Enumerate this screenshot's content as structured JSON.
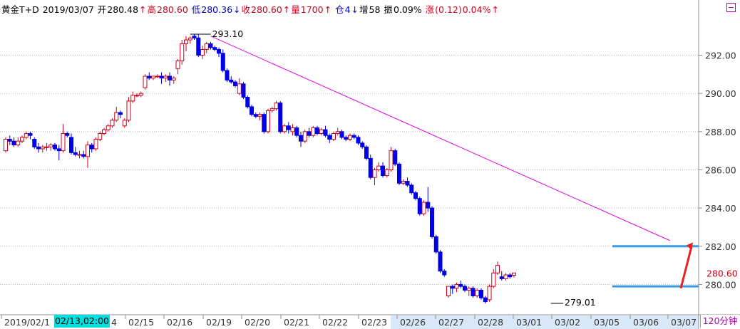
{
  "header": {
    "instrument": "黄金T+D",
    "date": "2019/03/07",
    "open_label": "开",
    "open": "280.48",
    "open_arrow": "↑",
    "high_label": "高",
    "high": "280.60",
    "high_arrow": "↑",
    "low_label": "低",
    "low": "280.36",
    "low_arrow": "↓",
    "close_label": "收",
    "close": "280.60",
    "close_arrow": "↑",
    "volume_label": "量",
    "volume": "1700",
    "volume_arrow": "↑",
    "oi_label": "仓",
    "oi": "4",
    "oi_arrow": "↓",
    "oi_change_label": "增",
    "oi_change": "58",
    "amp_label": "振",
    "amp": "0.09%",
    "chg_label": "涨",
    "chg": "(0.12)",
    "chg_pct": "0.04%",
    "chg_arrow": "↑"
  },
  "colors": {
    "up": "#d0021b",
    "down": "#0000e8",
    "grid": "#b8b8b8",
    "trendline": "#e000e0",
    "support": "#3a9be0",
    "arrow": "#e82020",
    "selected_date_bg": "#00e0e0",
    "future_axis_bg": "#d8e8f8"
  },
  "period_label": "120分钟",
  "selected_date_label": "02/13,02:00",
  "chart_data": {
    "type": "candlestick",
    "y_axis": {
      "min": 278.7,
      "max": 294.0,
      "ticks": [
        "292.00",
        "290.00",
        "288.00",
        "286.00",
        "284.00",
        "282.00",
        "280.00"
      ],
      "tick_values": [
        292,
        290,
        288,
        286,
        284,
        282,
        280
      ],
      "last_price_label": "280.60",
      "last_price": 280.6
    },
    "x_axis_labels": [
      "2019/02/1",
      "4",
      "02/15",
      "02/16",
      "02/19",
      "02/20",
      "02/21",
      "02/22",
      "02/23",
      "02/26",
      "02/27",
      "02/28",
      "03/01",
      "03/02",
      "03/05",
      "03/06",
      "03/07"
    ],
    "annotations": {
      "high_label": "293.10",
      "high_value": 293.1,
      "low_label": "279.01",
      "low_value": 279.01
    },
    "trendline": {
      "from": {
        "bar": 50,
        "price": 293.0
      },
      "to": {
        "bar": 162,
        "price": 282.3
      }
    },
    "support_lines": [
      {
        "price": 282.0,
        "from_bar": 148
      },
      {
        "price": 279.9,
        "from_bar": 148
      }
    ],
    "candles": [
      [
        287.0,
        287.7,
        286.9,
        287.6
      ],
      [
        287.6,
        287.8,
        287.3,
        287.5
      ],
      [
        287.5,
        287.7,
        287.2,
        287.3
      ],
      [
        287.3,
        287.7,
        287.2,
        287.5
      ],
      [
        287.5,
        287.8,
        287.4,
        287.7
      ],
      [
        287.7,
        288.0,
        287.6,
        287.9
      ],
      [
        287.9,
        288.0,
        287.6,
        287.8
      ],
      [
        287.6,
        287.7,
        287.1,
        287.2
      ],
      [
        287.2,
        287.4,
        286.9,
        287.1
      ],
      [
        287.1,
        287.3,
        286.9,
        287.2
      ],
      [
        287.2,
        287.4,
        287.0,
        287.2
      ],
      [
        287.2,
        287.4,
        287.0,
        287.3
      ],
      [
        287.3,
        287.4,
        287.0,
        287.1
      ],
      [
        287.1,
        287.3,
        286.5,
        287.0
      ],
      [
        287.0,
        288.4,
        286.9,
        287.9
      ],
      [
        287.9,
        288.0,
        287.7,
        287.8
      ],
      [
        287.7,
        287.9,
        286.8,
        286.9
      ],
      [
        286.9,
        287.2,
        286.7,
        286.8
      ],
      [
        286.8,
        287.0,
        286.6,
        286.8
      ],
      [
        286.8,
        287.0,
        286.6,
        286.7
      ],
      [
        286.7,
        287.5,
        286.1,
        287.3
      ],
      [
        287.3,
        287.4,
        286.9,
        287.1
      ],
      [
        287.1,
        287.7,
        287.0,
        287.6
      ],
      [
        287.6,
        288.0,
        287.5,
        287.9
      ],
      [
        287.9,
        288.2,
        287.8,
        288.1
      ],
      [
        288.1,
        288.4,
        288.0,
        288.3
      ],
      [
        288.3,
        288.7,
        288.2,
        288.6
      ],
      [
        288.6,
        289.3,
        288.5,
        289.0
      ],
      [
        289.0,
        289.1,
        288.7,
        288.9
      ],
      [
        288.3,
        288.7,
        288.2,
        288.6
      ],
      [
        288.6,
        289.8,
        288.5,
        289.6
      ],
      [
        289.6,
        290.1,
        289.5,
        289.9
      ],
      [
        289.9,
        290.0,
        289.8,
        289.9
      ],
      [
        289.9,
        290.1,
        289.8,
        290.0
      ],
      [
        290.3,
        291.0,
        290.2,
        290.9
      ],
      [
        290.9,
        291.1,
        290.7,
        290.8
      ],
      [
        290.8,
        290.9,
        290.7,
        290.9
      ],
      [
        290.9,
        291.0,
        290.8,
        290.9
      ],
      [
        290.9,
        291.1,
        290.5,
        290.8
      ],
      [
        290.8,
        291.0,
        290.6,
        290.9
      ],
      [
        290.9,
        291.1,
        290.4,
        290.7
      ],
      [
        290.7,
        290.9,
        290.5,
        290.8
      ],
      [
        291.3,
        291.8,
        291.0,
        291.7
      ],
      [
        291.7,
        292.8,
        291.5,
        292.6
      ],
      [
        292.6,
        293.0,
        292.2,
        292.8
      ],
      [
        292.8,
        293.0,
        292.6,
        292.9
      ],
      [
        293.0,
        293.1,
        292.8,
        292.9
      ],
      [
        292.9,
        293.1,
        291.9,
        292.0
      ],
      [
        292.0,
        292.5,
        291.8,
        292.3
      ],
      [
        292.3,
        292.7,
        292.1,
        292.6
      ],
      [
        292.6,
        292.7,
        292.3,
        292.4
      ],
      [
        292.4,
        292.5,
        292.2,
        292.3
      ],
      [
        292.3,
        292.4,
        291.9,
        292.1
      ],
      [
        292.1,
        292.3,
        291.1,
        291.2
      ],
      [
        291.2,
        291.3,
        290.6,
        290.7
      ],
      [
        290.7,
        290.9,
        290.5,
        290.6
      ],
      [
        290.6,
        290.7,
        290.3,
        290.4
      ],
      [
        290.0,
        290.8,
        289.9,
        290.5
      ],
      [
        290.5,
        290.6,
        289.7,
        289.8
      ],
      [
        289.8,
        289.9,
        289.2,
        289.3
      ],
      [
        289.3,
        289.4,
        288.8,
        288.9
      ],
      [
        288.9,
        289.0,
        288.7,
        288.8
      ],
      [
        288.8,
        289.0,
        288.6,
        288.9
      ],
      [
        288.9,
        289.0,
        287.9,
        288.0
      ],
      [
        288.0,
        289.2,
        287.9,
        289.1
      ],
      [
        289.1,
        289.3,
        289.0,
        289.2
      ],
      [
        289.2,
        289.6,
        289.1,
        289.5
      ],
      [
        289.5,
        289.6,
        287.9,
        288.0
      ],
      [
        288.0,
        288.4,
        287.9,
        288.3
      ],
      [
        288.3,
        288.5,
        287.9,
        288.1
      ],
      [
        288.0,
        288.4,
        287.8,
        288.2
      ],
      [
        288.2,
        288.3,
        287.7,
        287.8
      ],
      [
        287.8,
        288.0,
        287.2,
        287.5
      ],
      [
        287.5,
        288.1,
        287.4,
        288.0
      ],
      [
        288.0,
        288.2,
        287.7,
        287.8
      ],
      [
        287.8,
        288.3,
        287.7,
        288.2
      ],
      [
        288.2,
        288.3,
        287.8,
        287.9
      ],
      [
        287.9,
        288.2,
        287.8,
        288.1
      ],
      [
        288.1,
        288.3,
        287.7,
        287.8
      ],
      [
        287.8,
        287.9,
        287.4,
        287.6
      ],
      [
        287.6,
        288.0,
        287.5,
        287.9
      ],
      [
        287.9,
        288.2,
        287.8,
        288.0
      ],
      [
        288.0,
        288.1,
        287.6,
        287.7
      ],
      [
        287.7,
        287.8,
        287.5,
        287.6
      ],
      [
        287.6,
        287.9,
        287.5,
        287.8
      ],
      [
        287.8,
        287.9,
        287.6,
        287.7
      ],
      [
        287.7,
        287.8,
        287.3,
        287.4
      ],
      [
        287.4,
        287.5,
        287.1,
        287.2
      ],
      [
        287.2,
        287.3,
        286.5,
        286.6
      ],
      [
        286.6,
        286.8,
        285.5,
        285.6
      ],
      [
        285.6,
        286.1,
        285.2,
        286.0
      ],
      [
        286.0,
        286.4,
        285.9,
        286.2
      ],
      [
        286.2,
        286.4,
        285.6,
        285.7
      ],
      [
        285.7,
        286.1,
        285.6,
        286.0
      ],
      [
        286.0,
        287.2,
        285.9,
        287.0
      ],
      [
        287.0,
        287.1,
        286.2,
        286.3
      ],
      [
        286.3,
        286.4,
        285.2,
        285.3
      ],
      [
        285.3,
        285.5,
        285.2,
        285.4
      ],
      [
        285.4,
        285.6,
        285.1,
        285.2
      ],
      [
        285.2,
        285.3,
        284.7,
        284.8
      ],
      [
        284.8,
        284.9,
        284.4,
        284.5
      ],
      [
        284.5,
        284.6,
        283.6,
        283.7
      ],
      [
        283.7,
        284.4,
        283.6,
        284.3
      ],
      [
        284.3,
        285.1,
        283.8,
        284.0
      ],
      [
        284.0,
        284.1,
        282.4,
        282.5
      ],
      [
        282.5,
        282.6,
        281.6,
        281.7
      ],
      [
        281.7,
        281.8,
        280.6,
        280.7
      ],
      [
        280.7,
        280.8,
        280.4,
        280.5
      ],
      [
        279.4,
        279.9,
        279.3,
        279.9
      ],
      [
        279.9,
        280.0,
        279.5,
        279.8
      ],
      [
        279.8,
        280.1,
        279.6,
        280.0
      ],
      [
        280.0,
        280.2,
        279.8,
        279.9
      ],
      [
        279.9,
        280.0,
        279.6,
        279.7
      ],
      [
        279.7,
        279.9,
        279.4,
        279.8
      ],
      [
        279.8,
        279.9,
        279.3,
        279.4
      ],
      [
        279.4,
        279.8,
        279.3,
        279.7
      ],
      [
        279.7,
        279.8,
        279.2,
        279.3
      ],
      [
        279.3,
        279.4,
        279.0,
        279.1
      ],
      [
        279.2,
        280.0,
        279.1,
        279.9
      ],
      [
        279.9,
        280.8,
        279.8,
        280.6
      ],
      [
        280.6,
        281.2,
        280.5,
        281.0
      ],
      [
        280.4,
        280.7,
        280.2,
        280.3
      ],
      [
        280.3,
        280.6,
        280.2,
        280.5
      ],
      [
        280.5,
        280.6,
        280.3,
        280.4
      ],
      [
        280.48,
        280.6,
        280.36,
        280.6
      ]
    ]
  }
}
